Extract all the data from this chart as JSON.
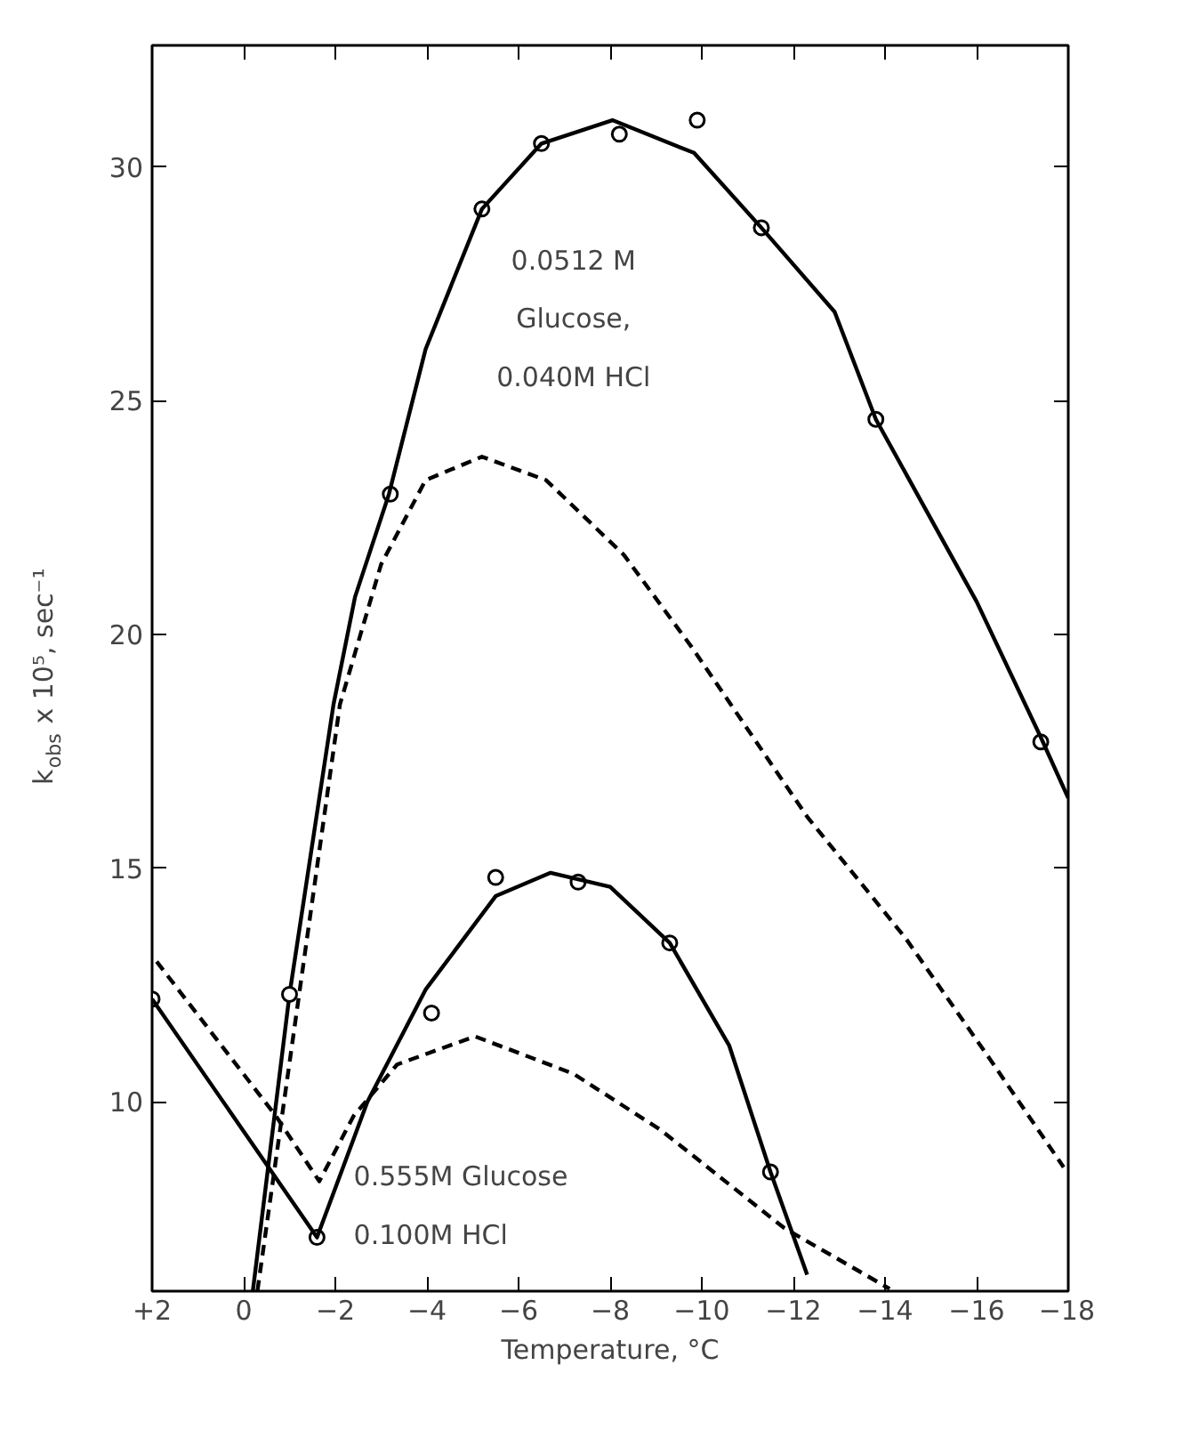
{
  "chart_data": {
    "type": "line",
    "xlabel": "Temperature, °C",
    "ylabel": "k$_{obs}$ x 10⁵, sec⁻¹",
    "xlim": [
      2,
      -18
    ],
    "ylim": [
      5.95,
      32.6
    ],
    "xticks": [
      {
        "value": 2,
        "label": "+2"
      },
      0,
      -2,
      -4,
      -6,
      -8,
      -10,
      -12,
      -14,
      -16,
      -18
    ],
    "yticks": [
      10,
      15,
      20,
      25,
      30
    ],
    "grid": false,
    "series": [
      {
        "type": "scatter",
        "marker": "circle",
        "color": "#000000",
        "x": [
          -3.2,
          -5.2,
          -6.5,
          -8.2,
          -9.9,
          -11.3,
          -13.8,
          -17.4
        ],
        "values": [
          23.0,
          29.1,
          30.5,
          30.7,
          31.0,
          28.7,
          24.6,
          17.7
        ]
      },
      {
        "type": "line",
        "line_style": "solid",
        "color": "#000000",
        "x": [
          -0.2,
          -1.0,
          -1.96,
          -2.43,
          -3.17,
          -3.97,
          -5.2,
          -6.5,
          -8.05,
          -9.83,
          -11.3,
          -12.9,
          -13.8,
          -16.0,
          -17.4,
          -18.0
        ],
        "values": [
          5.96,
          12.3,
          18.5,
          20.8,
          23.0,
          26.1,
          29.1,
          30.5,
          31.0,
          30.3,
          28.7,
          26.9,
          24.6,
          20.7,
          17.8,
          16.5
        ]
      },
      {
        "type": "line",
        "line_style": "dashed",
        "color": "#000000",
        "x": [
          -0.3,
          -2.1,
          -3.0,
          -3.97,
          -5.2,
          -6.6,
          -8.3,
          -9.8,
          -12.3,
          -14.45,
          -16.3,
          -17.9
        ],
        "values": [
          5.96,
          18.5,
          21.5,
          23.3,
          23.8,
          23.3,
          21.7,
          19.7,
          16.1,
          13.5,
          10.9,
          8.6
        ]
      },
      {
        "type": "scatter",
        "marker": "circle",
        "color": "#000000",
        "x": [
          2.0,
          -1.0,
          -1.6,
          -4.1,
          -5.5,
          -7.3,
          -9.3,
          -11.5
        ],
        "values": [
          12.2,
          12.3,
          7.1,
          11.9,
          14.8,
          14.7,
          13.4,
          8.5
        ]
      },
      {
        "type": "line",
        "line_style": "solid",
        "color": "#000000",
        "x": [
          2.0,
          -1.6,
          -2.7,
          -3.97,
          -5.5,
          -6.7,
          -8.0,
          -9.3,
          -10.6,
          -11.5,
          -12.3
        ],
        "values": [
          12.2,
          7.1,
          10.0,
          12.4,
          14.4,
          14.9,
          14.6,
          13.4,
          11.2,
          8.5,
          6.3
        ]
      },
      {
        "type": "line",
        "line_style": "dashed",
        "color": "#000000",
        "x": [
          1.9,
          -0.7,
          -1.65,
          -2.4,
          -3.35,
          -5.05,
          -7.2,
          -9.1,
          -11.8,
          -14.1
        ],
        "values": [
          13.0,
          9.7,
          8.3,
          9.7,
          10.8,
          11.4,
          10.6,
          9.4,
          7.3,
          6.0
        ]
      }
    ],
    "annotations": [
      "0.0512 M\nGlucose,\n0.040M HCl",
      "0.555M Glucose\n0.100M HCl"
    ]
  }
}
